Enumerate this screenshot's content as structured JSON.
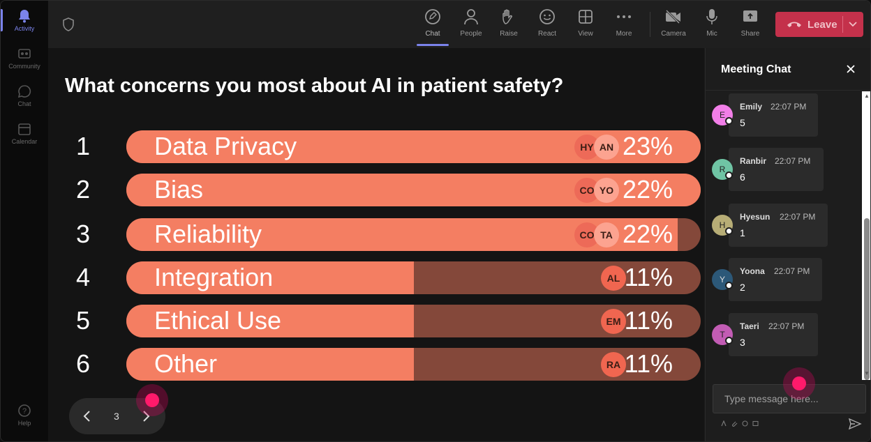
{
  "rail": {
    "items": [
      {
        "label": "Activity",
        "icon": "bell-icon"
      },
      {
        "label": "Community",
        "icon": "community-icon"
      },
      {
        "label": "Chat",
        "icon": "chat-icon"
      },
      {
        "label": "Calendar",
        "icon": "calendar-icon"
      },
      {
        "label": "Help",
        "icon": "help-icon"
      }
    ]
  },
  "toolbar": {
    "buttons": [
      {
        "label": "Chat",
        "icon": "chat-icon"
      },
      {
        "label": "People",
        "icon": "people-icon"
      },
      {
        "label": "Raise",
        "icon": "raise-hand-icon"
      },
      {
        "label": "React",
        "icon": "react-icon"
      },
      {
        "label": "View",
        "icon": "view-icon"
      },
      {
        "label": "More",
        "icon": "more-icon"
      },
      {
        "label": "Camera",
        "icon": "camera-off-icon"
      },
      {
        "label": "Mic",
        "icon": "mic-icon"
      },
      {
        "label": "Share",
        "icon": "share-icon"
      }
    ],
    "leave_label": "Leave"
  },
  "poll": {
    "question": "What concerns you most about AI in patient safety?",
    "options": [
      {
        "num": "1",
        "label": "Data Privacy",
        "pct": "23%",
        "fill": 1.0,
        "avatars": [
          "HY",
          "AN"
        ]
      },
      {
        "num": "2",
        "label": "Bias",
        "pct": "22%",
        "fill": 1.0,
        "avatars": [
          "CO",
          "YO"
        ]
      },
      {
        "num": "3",
        "label": "Reliability",
        "pct": "22%",
        "fill": 0.96,
        "avatars": [
          "CO",
          "TA"
        ]
      },
      {
        "num": "4",
        "label": "Integration",
        "pct": "11%",
        "fill": 0.5,
        "avatars": [
          "AL"
        ]
      },
      {
        "num": "5",
        "label": "Ethical Use",
        "pct": "11%",
        "fill": 0.5,
        "avatars": [
          "EM"
        ]
      },
      {
        "num": "6",
        "label": "Other",
        "pct": "11%",
        "fill": 0.5,
        "avatars": [
          "RA"
        ]
      }
    ],
    "page": "3"
  },
  "chat": {
    "title": "Meeting Chat",
    "messages": [
      {
        "initial": "E",
        "name": "Emily",
        "time": "22:07 PM",
        "text": "5",
        "color": "#f27fe8"
      },
      {
        "initial": "R",
        "name": "Ranbir",
        "time": "22:07 PM",
        "text": "6",
        "color": "#6fc4a4"
      },
      {
        "initial": "H",
        "name": "Hyesun",
        "time": "22:07 PM",
        "text": "1",
        "color": "#b7ad76"
      },
      {
        "initial": "Y",
        "name": "Yoona",
        "time": "22:07 PM",
        "text": "2",
        "color": "#2c5878"
      },
      {
        "initial": "T",
        "name": "Taeri",
        "time": "22:07 PM",
        "text": "3",
        "color": "#c25cb4"
      }
    ],
    "placeholder": "Type message here..."
  }
}
